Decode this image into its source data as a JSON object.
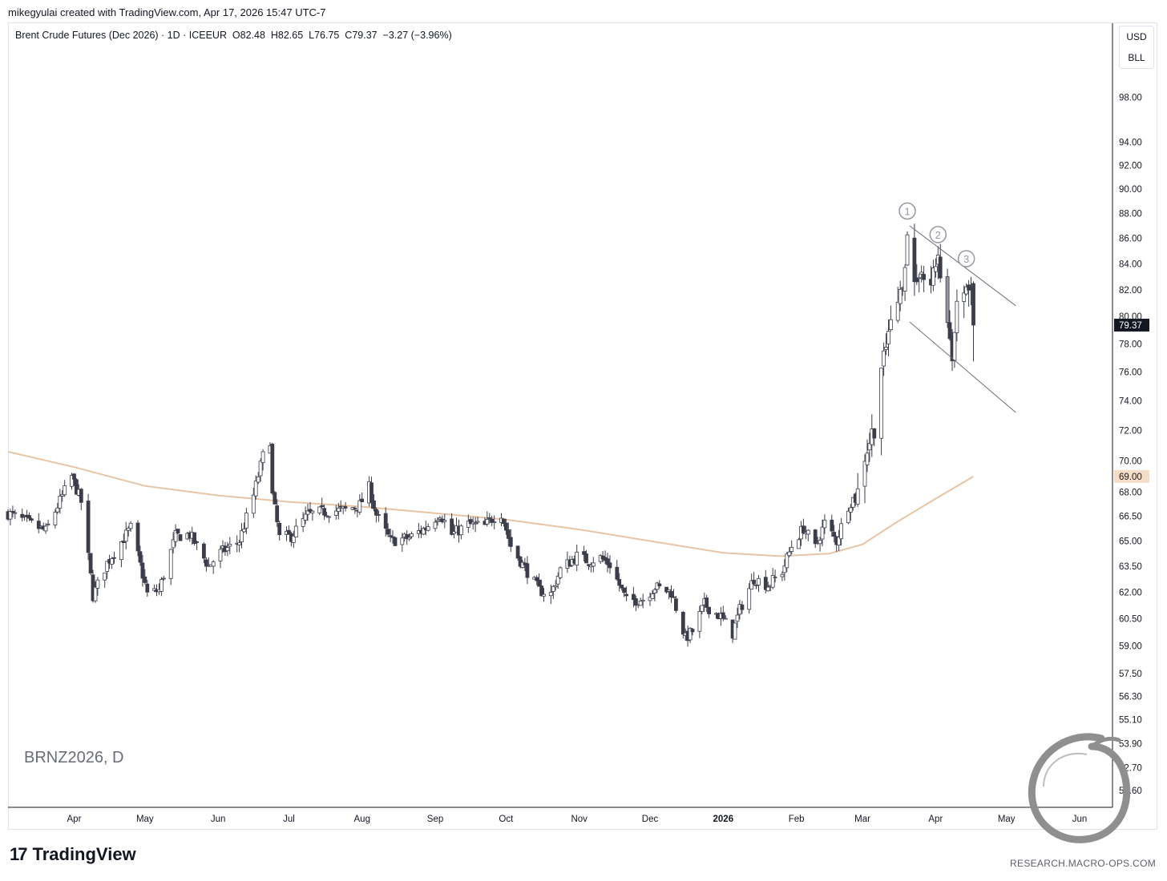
{
  "caption": "mikegyulai created with TradingView.com, Apr 17, 2026 15:47 UTC-7",
  "legend": "Brent Crude Futures (Dec 2026) · 1D · ICEEUR  O82.48  H82.65  L76.75  C79.37  −3.27 (−3.96%)",
  "symbol_watermark": "BRNZ2026, D",
  "unit": {
    "currency": "USD",
    "measure": "BLL"
  },
  "footer": {
    "brand": "TradingView",
    "credit": "RESEARCH.MACRO-OPS.COM"
  },
  "colors": {
    "up_candle": "#ffffff",
    "down_candle": "#3b3d4a",
    "highlight_candle": "#9598a1",
    "moving_average": "#e8c4a4",
    "price_badge": "#131722",
    "ma_badge": "#f5ddc8"
  },
  "chart_data": {
    "type": "candlestick",
    "title": "Brent Crude Futures (Dec 2026) · 1D · ICEEUR",
    "y_scale": "log",
    "ylim": [
      51.0,
      100.0
    ],
    "x_tick_labels": [
      "Apr",
      "May",
      "Jun",
      "Jul",
      "Aug",
      "Sep",
      "Oct",
      "Nov",
      "Dec",
      "2026",
      "Feb",
      "Mar",
      "Apr",
      "May",
      "Jun"
    ],
    "y_tick_labels": [
      "98.00",
      "94.00",
      "92.00",
      "90.00",
      "88.00",
      "86.00",
      "84.00",
      "82.00",
      "80.00",
      "78.00",
      "76.00",
      "74.00",
      "72.00",
      "70.00",
      "68.00",
      "66.50",
      "65.00",
      "63.50",
      "62.00",
      "60.50",
      "59.00",
      "57.50",
      "56.30",
      "55.10",
      "53.90",
      "52.70",
      "51.60"
    ],
    "last_price": {
      "label": "79.37",
      "value": 79.37
    },
    "moving_average": {
      "label": "69.00",
      "value": 69.0,
      "points": [
        [
          "2025-03-04",
          70.6
        ],
        [
          "2025-04-01",
          69.6
        ],
        [
          "2025-05-01",
          68.4
        ],
        [
          "2025-06-01",
          67.8
        ],
        [
          "2025-07-01",
          67.4
        ],
        [
          "2025-08-01",
          67.1
        ],
        [
          "2025-09-01",
          66.7
        ],
        [
          "2025-10-01",
          66.3
        ],
        [
          "2025-11-01",
          65.7
        ],
        [
          "2025-12-01",
          65.0
        ],
        [
          "2026-01-01",
          64.3
        ],
        [
          "2026-01-25",
          64.1
        ],
        [
          "2026-02-15",
          64.25
        ],
        [
          "2026-03-01",
          64.8
        ],
        [
          "2026-03-15",
          66.1
        ],
        [
          "2026-04-01",
          67.6
        ],
        [
          "2026-04-17",
          69.0
        ]
      ]
    },
    "swing_markers": [
      {
        "label": "1",
        "date": "2026-03-20",
        "price": 88.2
      },
      {
        "label": "2",
        "date": "2026-04-02",
        "price": 86.3
      },
      {
        "label": "3",
        "date": "2026-04-14",
        "price": 84.4
      }
    ],
    "channel": {
      "upper": [
        [
          "2026-03-21",
          87.0
        ],
        [
          "2026-05-05",
          80.8
        ]
      ],
      "lower": [
        [
          "2026-03-21",
          79.6
        ],
        [
          "2026-05-05",
          73.2
        ]
      ]
    },
    "anchors": [
      [
        "2025-03-04",
        66.7
      ],
      [
        "2025-03-20",
        65.6
      ],
      [
        "2025-03-31",
        69.0
      ],
      [
        "2025-04-04",
        67.4
      ],
      [
        "2025-04-09",
        61.8
      ],
      [
        "2025-04-15",
        63.7
      ],
      [
        "2025-04-25",
        65.8
      ],
      [
        "2025-05-02",
        61.9
      ],
      [
        "2025-05-07",
        62.1
      ],
      [
        "2025-05-14",
        65.3
      ],
      [
        "2025-05-20",
        65.4
      ],
      [
        "2025-05-28",
        63.5
      ],
      [
        "2025-06-02",
        64.3
      ],
      [
        "2025-06-10",
        65.0
      ],
      [
        "2025-06-16",
        67.8
      ],
      [
        "2025-06-20",
        70.3
      ],
      [
        "2025-06-23",
        71.4
      ],
      [
        "2025-06-24",
        67.8
      ],
      [
        "2025-06-27",
        65.2
      ],
      [
        "2025-07-02",
        65.3
      ],
      [
        "2025-07-09",
        66.6
      ],
      [
        "2025-07-16",
        66.8
      ],
      [
        "2025-07-25",
        66.9
      ],
      [
        "2025-07-31",
        67.2
      ],
      [
        "2025-08-04",
        68.3
      ],
      [
        "2025-08-07",
        66.6
      ],
      [
        "2025-08-13",
        65.0
      ],
      [
        "2025-08-21",
        65.2
      ],
      [
        "2025-08-28",
        65.8
      ],
      [
        "2025-09-03",
        66.7
      ],
      [
        "2025-09-08",
        65.4
      ],
      [
        "2025-09-15",
        66.0
      ],
      [
        "2025-09-22",
        65.9
      ],
      [
        "2025-09-26",
        66.5
      ],
      [
        "2025-09-29",
        66.7
      ],
      [
        "2025-10-03",
        64.7
      ],
      [
        "2025-10-09",
        63.4
      ],
      [
        "2025-10-15",
        62.1
      ],
      [
        "2025-10-20",
        61.9
      ],
      [
        "2025-10-24",
        63.3
      ],
      [
        "2025-10-31",
        64.1
      ],
      [
        "2025-11-05",
        63.8
      ],
      [
        "2025-11-10",
        64.0
      ],
      [
        "2025-11-14",
        63.6
      ],
      [
        "2025-11-21",
        61.5
      ],
      [
        "2025-11-28",
        61.6
      ],
      [
        "2025-12-03",
        62.3
      ],
      [
        "2025-12-10",
        62.0
      ],
      [
        "2025-12-16",
        59.4
      ],
      [
        "2025-12-19",
        59.8
      ],
      [
        "2025-12-24",
        61.3
      ],
      [
        "2025-12-31",
        60.6
      ],
      [
        "2026-01-05",
        59.7
      ],
      [
        "2026-01-08",
        61.0
      ],
      [
        "2026-01-14",
        62.8
      ],
      [
        "2026-01-20",
        62.4
      ],
      [
        "2026-01-26",
        63.2
      ],
      [
        "2026-01-30",
        64.7
      ],
      [
        "2026-02-04",
        65.8
      ],
      [
        "2026-02-09",
        64.6
      ],
      [
        "2026-02-13",
        66.1
      ],
      [
        "2026-02-18",
        65.0
      ],
      [
        "2026-02-23",
        67.2
      ],
      [
        "2026-02-27",
        68.0
      ],
      [
        "2026-03-02",
        70.4
      ],
      [
        "2026-03-06",
        72.3
      ],
      [
        "2026-03-09",
        75.9
      ],
      [
        "2026-03-12",
        78.6
      ],
      [
        "2026-03-17",
        81.6
      ],
      [
        "2026-03-20",
        85.9
      ],
      [
        "2026-03-24",
        81.8
      ],
      [
        "2026-03-26",
        84.0
      ],
      [
        "2026-03-30",
        82.6
      ],
      [
        "2026-04-02",
        84.9
      ],
      [
        "2026-04-06",
        79.7
      ],
      [
        "2026-04-08",
        77.4
      ],
      [
        "2026-04-10",
        80.4
      ],
      [
        "2026-04-13",
        82.6
      ],
      [
        "2026-04-15",
        82.1
      ],
      [
        "2026-04-16",
        82.48
      ],
      [
        "2026-04-17",
        79.37
      ]
    ],
    "last_bar": {
      "date": "2026-04-17",
      "open": 82.48,
      "high": 82.65,
      "low": 76.75,
      "close": 79.37,
      "change": -3.27,
      "change_pct": -3.96
    }
  }
}
